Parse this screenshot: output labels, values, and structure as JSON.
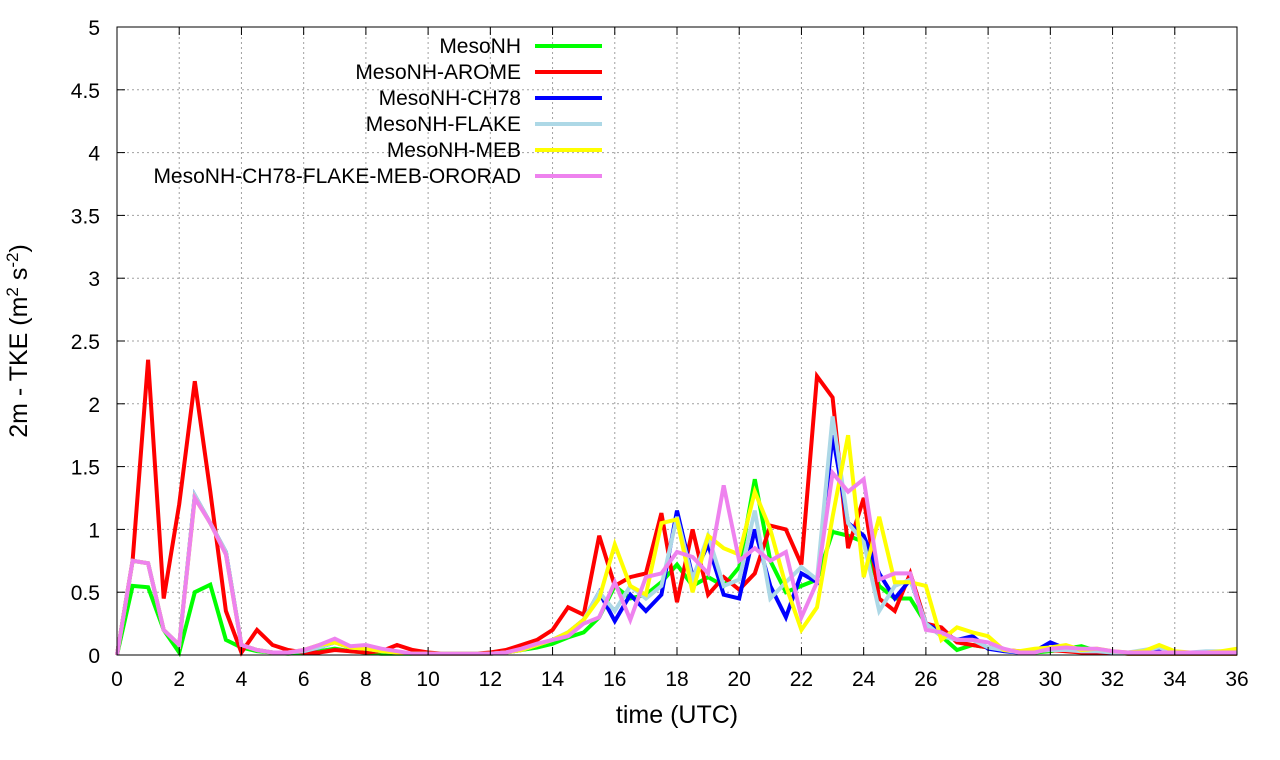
{
  "chart_data": {
    "type": "line",
    "title": "",
    "xlabel": "time (UTC)",
    "ylabel_main": "2m - TKE (m",
    "ylabel_sup1": "2",
    "ylabel_mid": " s",
    "ylabel_sup2": "-2",
    "ylabel_end": ")",
    "xlim": [
      0,
      36
    ],
    "ylim": [
      0,
      5
    ],
    "xticks": [
      0,
      2,
      4,
      6,
      8,
      10,
      12,
      14,
      16,
      18,
      20,
      22,
      24,
      26,
      28,
      30,
      32,
      34,
      36
    ],
    "yticks": [
      0,
      0.5,
      1,
      1.5,
      2,
      2.5,
      3,
      3.5,
      4,
      4.5,
      5
    ],
    "ytick_labels": [
      "0",
      "0.5",
      "1",
      "1.5",
      "2",
      "2.5",
      "3",
      "3.5",
      "4",
      "4.5",
      "5"
    ],
    "xtick_labels": [
      "0",
      "2",
      "4",
      "6",
      "8",
      "10",
      "12",
      "14",
      "16",
      "18",
      "20",
      "22",
      "24",
      "26",
      "28",
      "30",
      "32",
      "34",
      "36"
    ],
    "grid": true,
    "legend_position": "top-left",
    "series": [
      {
        "name": "MesoNH",
        "color": "#00ff00",
        "x": [
          0,
          0.5,
          1,
          1.5,
          2,
          2.5,
          3,
          3.5,
          4,
          4.5,
          5,
          5.5,
          6,
          6.5,
          7,
          7.5,
          8,
          8.5,
          9,
          9.5,
          10,
          10.5,
          11,
          11.5,
          12,
          12.5,
          13,
          13.5,
          14,
          14.5,
          15,
          15.5,
          16,
          16.5,
          17,
          17.5,
          18,
          18.5,
          19,
          19.5,
          20,
          20.5,
          21,
          21.5,
          22,
          22.5,
          23,
          23.5,
          24,
          24.5,
          25,
          25.5,
          26,
          26.5,
          27,
          27.5,
          28,
          28.5,
          29,
          29.5,
          30,
          30.5,
          31,
          31.5,
          32,
          32.5,
          33,
          33.5,
          34,
          34.5,
          35,
          35.5,
          36
        ],
        "y": [
          0,
          0.55,
          0.54,
          0.2,
          0.02,
          0.5,
          0.56,
          0.12,
          0.06,
          0.03,
          0.02,
          0.01,
          0.02,
          0.03,
          0.05,
          0.03,
          0.02,
          0.01,
          0.01,
          0.01,
          0.01,
          0.01,
          0.01,
          0.01,
          0.01,
          0.02,
          0.04,
          0.06,
          0.09,
          0.14,
          0.18,
          0.3,
          0.55,
          0.45,
          0.48,
          0.58,
          0.72,
          0.55,
          0.62,
          0.55,
          0.7,
          1.4,
          0.75,
          0.5,
          0.55,
          0.6,
          0.98,
          0.95,
          0.9,
          0.55,
          0.45,
          0.45,
          0.25,
          0.15,
          0.04,
          0.08,
          0.06,
          0.04,
          0.02,
          0.02,
          0.03,
          0.05,
          0.07,
          0.03,
          0.02,
          0.01,
          0.01,
          0.01,
          0.01,
          0.01,
          0.01,
          0.01,
          0.01
        ]
      },
      {
        "name": "MesoNH-AROME",
        "color": "#ff0000",
        "x": [
          0,
          0.5,
          1,
          1.5,
          2,
          2.5,
          3,
          3.5,
          4,
          4.5,
          5,
          5.5,
          6,
          6.5,
          7,
          7.5,
          8,
          8.5,
          9,
          9.5,
          10,
          10.5,
          11,
          11.5,
          12,
          12.5,
          13,
          13.5,
          14,
          14.5,
          15,
          15.5,
          16,
          16.5,
          17,
          17.5,
          18,
          18.5,
          19,
          19.5,
          20,
          20.5,
          21,
          21.5,
          22,
          22.5,
          23,
          23.5,
          24,
          24.5,
          25,
          25.5,
          26,
          26.5,
          27,
          27.5,
          28,
          28.5,
          29,
          29.5,
          30,
          30.5,
          31,
          31.5,
          32,
          32.5,
          33,
          33.5,
          34,
          34.5,
          35,
          35.5,
          36
        ],
        "y": [
          0,
          0.75,
          2.35,
          0.45,
          1.2,
          2.18,
          1.3,
          0.35,
          0.02,
          0.2,
          0.08,
          0.04,
          0.02,
          0.02,
          0.04,
          0.03,
          0.02,
          0.03,
          0.08,
          0.04,
          0.02,
          0.01,
          0.01,
          0.01,
          0.02,
          0.04,
          0.08,
          0.12,
          0.2,
          0.38,
          0.32,
          0.95,
          0.55,
          0.62,
          0.65,
          1.13,
          0.42,
          1.0,
          0.48,
          0.62,
          0.52,
          0.65,
          1.03,
          1.0,
          0.72,
          2.22,
          2.05,
          0.85,
          1.25,
          0.45,
          0.35,
          0.65,
          0.25,
          0.22,
          0.1,
          0.08,
          0.06,
          0.04,
          0.03,
          0.03,
          0.04,
          0.03,
          0.02,
          0.02,
          0.02,
          0.01,
          0.01,
          0.01,
          0.01,
          0.01,
          0.01,
          0.01,
          0.01
        ]
      },
      {
        "name": "MesoNH-CH78",
        "color": "#0000ff",
        "x": [
          0,
          0.5,
          1,
          1.5,
          2,
          2.5,
          3,
          3.5,
          4,
          4.5,
          5,
          5.5,
          6,
          6.5,
          7,
          7.5,
          8,
          8.5,
          9,
          9.5,
          10,
          10.5,
          11,
          11.5,
          12,
          12.5,
          13,
          13.5,
          14,
          14.5,
          15,
          15.5,
          16,
          16.5,
          17,
          17.5,
          18,
          18.5,
          19,
          19.5,
          20,
          20.5,
          21,
          21.5,
          22,
          22.5,
          23,
          23.5,
          24,
          24.5,
          25,
          25.5,
          26,
          26.5,
          27,
          27.5,
          28,
          28.5,
          29,
          29.5,
          30,
          30.5,
          31,
          31.5,
          32,
          32.5,
          33,
          33.5,
          34,
          34.5,
          35,
          35.5,
          36
        ],
        "y": [
          0,
          0.75,
          0.73,
          0.2,
          0.08,
          1.27,
          1.05,
          0.82,
          0.08,
          0.04,
          0.02,
          0.02,
          0.03,
          0.06,
          0.1,
          0.06,
          0.05,
          0.03,
          0.02,
          0.01,
          0.01,
          0.01,
          0.01,
          0.01,
          0.01,
          0.02,
          0.04,
          0.08,
          0.12,
          0.18,
          0.28,
          0.5,
          0.27,
          0.48,
          0.35,
          0.48,
          1.15,
          0.62,
          0.88,
          0.48,
          0.45,
          1.0,
          0.55,
          0.3,
          0.65,
          0.58,
          1.75,
          1.05,
          0.95,
          0.65,
          0.45,
          0.6,
          0.25,
          0.18,
          0.12,
          0.15,
          0.05,
          0.03,
          0.02,
          0.03,
          0.1,
          0.05,
          0.03,
          0.03,
          0.02,
          0.02,
          0.02,
          0.03,
          0.02,
          0.02,
          0.02,
          0.02,
          0.02
        ]
      },
      {
        "name": "MesoNH-FLAKE",
        "color": "#add8e6",
        "x": [
          0,
          0.5,
          1,
          1.5,
          2,
          2.5,
          3,
          3.5,
          4,
          4.5,
          5,
          5.5,
          6,
          6.5,
          7,
          7.5,
          8,
          8.5,
          9,
          9.5,
          10,
          10.5,
          11,
          11.5,
          12,
          12.5,
          13,
          13.5,
          14,
          14.5,
          15,
          15.5,
          16,
          16.5,
          17,
          17.5,
          18,
          18.5,
          19,
          19.5,
          20,
          20.5,
          21,
          21.5,
          22,
          22.5,
          23,
          23.5,
          24,
          24.5,
          25,
          25.5,
          26,
          26.5,
          27,
          27.5,
          28,
          28.5,
          29,
          29.5,
          30,
          30.5,
          31,
          31.5,
          32,
          32.5,
          33,
          33.5,
          34,
          34.5,
          35,
          35.5,
          36
        ],
        "y": [
          0,
          0.75,
          0.73,
          0.2,
          0.08,
          1.27,
          1.05,
          0.82,
          0.08,
          0.04,
          0.02,
          0.02,
          0.03,
          0.06,
          0.1,
          0.06,
          0.05,
          0.03,
          0.02,
          0.01,
          0.01,
          0.01,
          0.01,
          0.01,
          0.01,
          0.02,
          0.04,
          0.08,
          0.12,
          0.18,
          0.28,
          0.5,
          0.35,
          0.55,
          0.45,
          0.55,
          1.1,
          0.6,
          0.95,
          0.55,
          0.6,
          1.15,
          0.45,
          0.58,
          0.7,
          0.6,
          1.9,
          1.05,
          0.9,
          0.35,
          0.55,
          0.6,
          0.25,
          0.15,
          0.12,
          0.12,
          0.06,
          0.04,
          0.02,
          0.03,
          0.04,
          0.04,
          0.03,
          0.03,
          0.02,
          0.02,
          0.04,
          0.06,
          0.02,
          0.02,
          0.03,
          0.03,
          0.03
        ]
      },
      {
        "name": "MesoNH-MEB",
        "color": "#ffff00",
        "x": [
          0,
          0.5,
          1,
          1.5,
          2,
          2.5,
          3,
          3.5,
          4,
          4.5,
          5,
          5.5,
          6,
          6.5,
          7,
          7.5,
          8,
          8.5,
          9,
          9.5,
          10,
          10.5,
          11,
          11.5,
          12,
          12.5,
          13,
          13.5,
          14,
          14.5,
          15,
          15.5,
          16,
          16.5,
          17,
          17.5,
          18,
          18.5,
          19,
          19.5,
          20,
          20.5,
          21,
          21.5,
          22,
          22.5,
          23,
          23.5,
          24,
          24.5,
          25,
          25.5,
          26,
          26.5,
          27,
          27.5,
          28,
          28.5,
          29,
          29.5,
          30,
          30.5,
          31,
          31.5,
          32,
          32.5,
          33,
          33.5,
          34,
          34.5,
          35,
          35.5,
          36
        ],
        "y": [
          0,
          0.75,
          0.73,
          0.2,
          0.08,
          1.25,
          1.05,
          0.8,
          0.08,
          0.04,
          0.02,
          0.02,
          0.04,
          0.08,
          0.1,
          0.06,
          0.05,
          0.03,
          0.02,
          0.01,
          0.01,
          0.01,
          0.01,
          0.01,
          0.01,
          0.02,
          0.04,
          0.08,
          0.12,
          0.18,
          0.28,
          0.45,
          0.88,
          0.55,
          0.48,
          1.05,
          1.08,
          0.5,
          0.95,
          0.85,
          0.8,
          1.3,
          1.0,
          0.55,
          0.2,
          0.38,
          1.1,
          1.75,
          0.62,
          1.1,
          0.58,
          0.58,
          0.55,
          0.12,
          0.22,
          0.18,
          0.15,
          0.04,
          0.03,
          0.05,
          0.06,
          0.08,
          0.04,
          0.05,
          0.03,
          0.02,
          0.03,
          0.08,
          0.03,
          0.02,
          0.02,
          0.03,
          0.05
        ]
      },
      {
        "name": "MesoNH-CH78-FLAKE-MEB-ORORAD",
        "color": "#ee82ee",
        "x": [
          0,
          0.5,
          1,
          1.5,
          2,
          2.5,
          3,
          3.5,
          4,
          4.5,
          5,
          5.5,
          6,
          6.5,
          7,
          7.5,
          8,
          8.5,
          9,
          9.5,
          10,
          10.5,
          11,
          11.5,
          12,
          12.5,
          13,
          13.5,
          14,
          14.5,
          15,
          15.5,
          16,
          16.5,
          17,
          17.5,
          18,
          18.5,
          19,
          19.5,
          20,
          20.5,
          21,
          21.5,
          22,
          22.5,
          23,
          23.5,
          24,
          24.5,
          25,
          25.5,
          26,
          26.5,
          27,
          27.5,
          28,
          28.5,
          29,
          29.5,
          30,
          30.5,
          31,
          31.5,
          32,
          32.5,
          33,
          33.5,
          34,
          34.5,
          35,
          35.5,
          36
        ],
        "y": [
          0,
          0.75,
          0.73,
          0.2,
          0.08,
          1.25,
          1.05,
          0.8,
          0.08,
          0.04,
          0.02,
          0.02,
          0.04,
          0.08,
          0.13,
          0.07,
          0.08,
          0.05,
          0.03,
          0.01,
          0.01,
          0.01,
          0.01,
          0.01,
          0.01,
          0.02,
          0.05,
          0.09,
          0.12,
          0.15,
          0.25,
          0.3,
          0.58,
          0.28,
          0.62,
          0.65,
          0.82,
          0.78,
          0.65,
          1.35,
          0.75,
          0.85,
          0.75,
          0.82,
          0.3,
          0.58,
          1.45,
          1.3,
          1.4,
          0.6,
          0.65,
          0.65,
          0.2,
          0.18,
          0.12,
          0.12,
          0.1,
          0.05,
          0.02,
          0.02,
          0.05,
          0.06,
          0.05,
          0.05,
          0.03,
          0.02,
          0.02,
          0.02,
          0.02,
          0.02,
          0.02,
          0.02,
          0.02
        ]
      }
    ]
  }
}
